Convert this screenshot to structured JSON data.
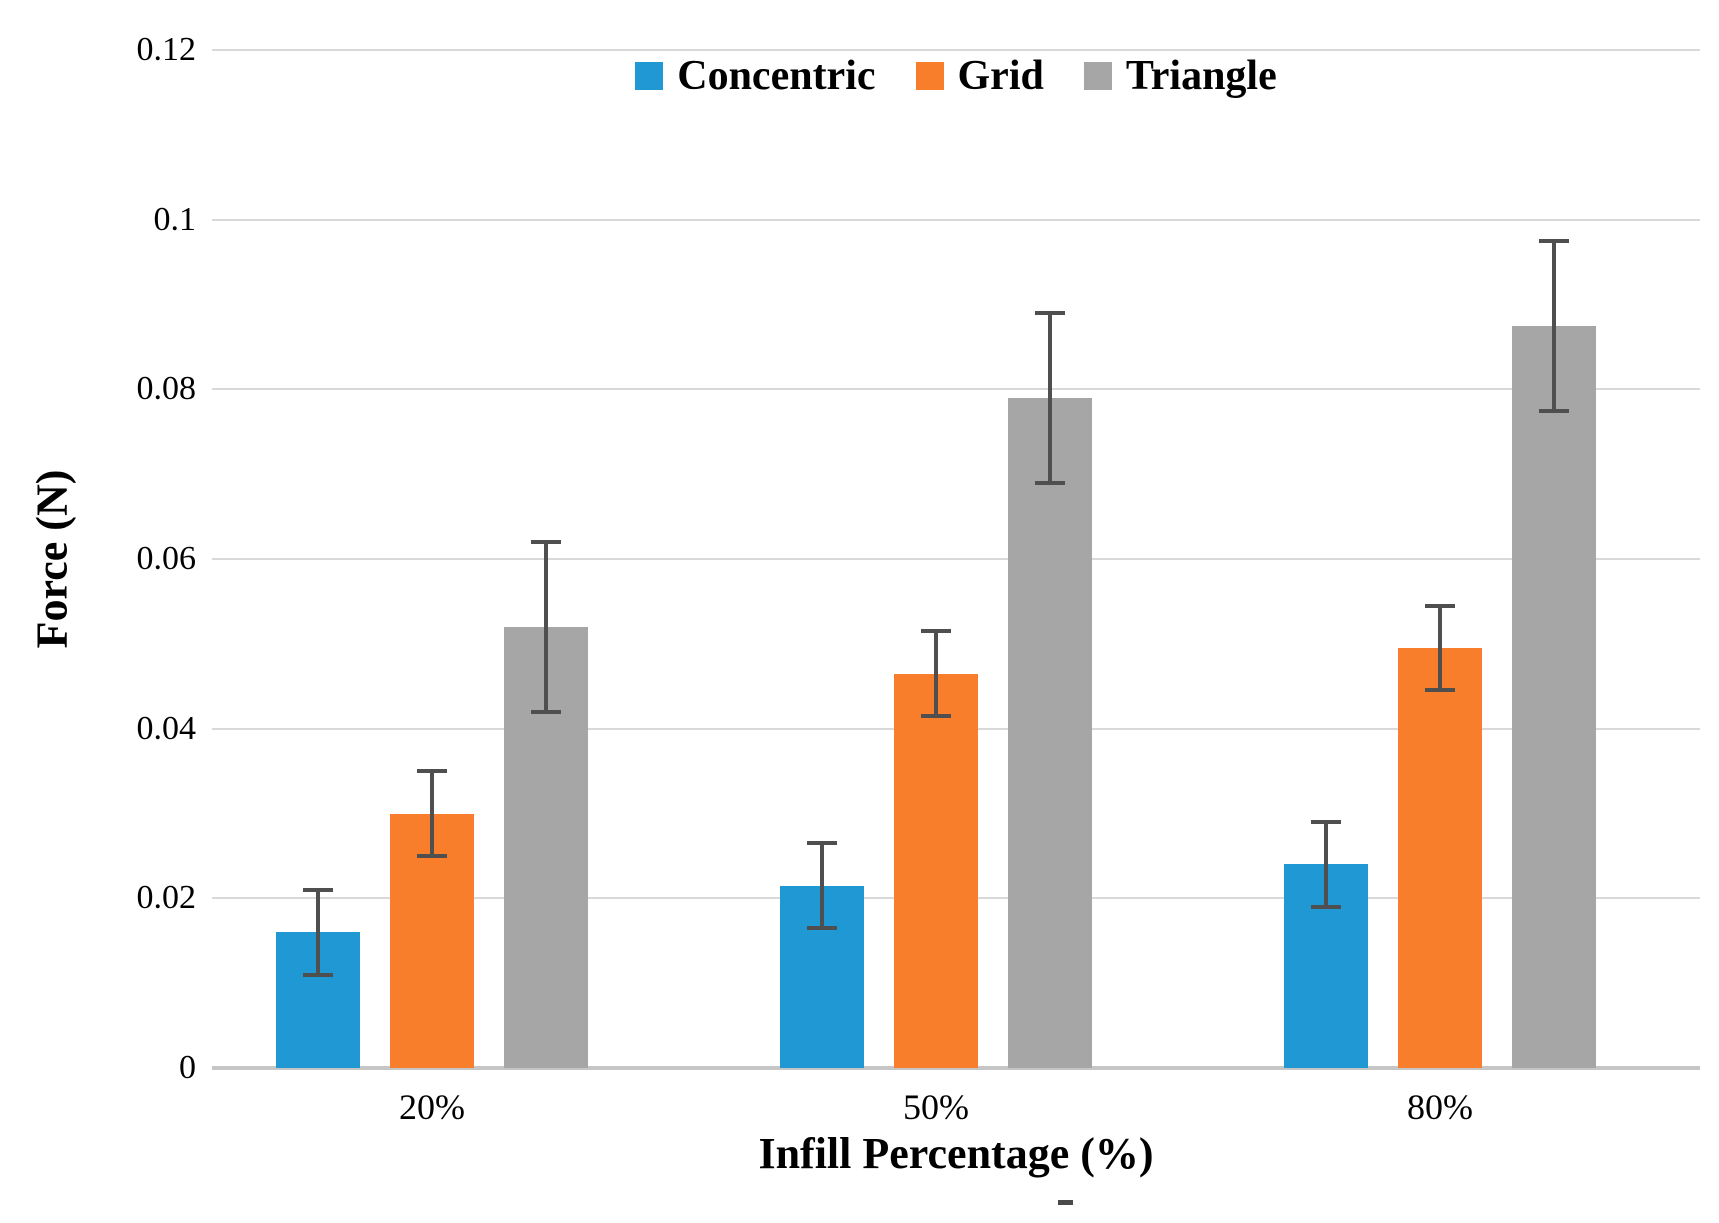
{
  "chart_data": {
    "type": "bar",
    "title": "",
    "categories": [
      "20%",
      "50%",
      "80%"
    ],
    "series": [
      {
        "name": "Concentric",
        "color": "#2098D4",
        "values": [
          0.016,
          0.0215,
          0.024
        ],
        "errors": [
          0.005,
          0.005,
          0.005
        ]
      },
      {
        "name": "Grid",
        "color": "#F87E2B",
        "values": [
          0.03,
          0.0465,
          0.0495
        ],
        "errors": [
          0.005,
          0.005,
          0.005
        ]
      },
      {
        "name": "Triangle",
        "color": "#A6A6A6",
        "values": [
          0.052,
          0.079,
          0.0875
        ],
        "errors": [
          0.01,
          0.01,
          0.01
        ]
      }
    ],
    "xlabel": "Infill Percentage (%)",
    "ylabel": "Force (N)",
    "ylim": [
      0,
      0.12
    ],
    "ytick_step": 0.02,
    "grid": true,
    "legend_position": "top",
    "gridline_color": "#D9D9D9",
    "axis_line_color": "#C6C6C6",
    "error_bar_color": "#4F4F4F",
    "text_color": "#000000"
  }
}
